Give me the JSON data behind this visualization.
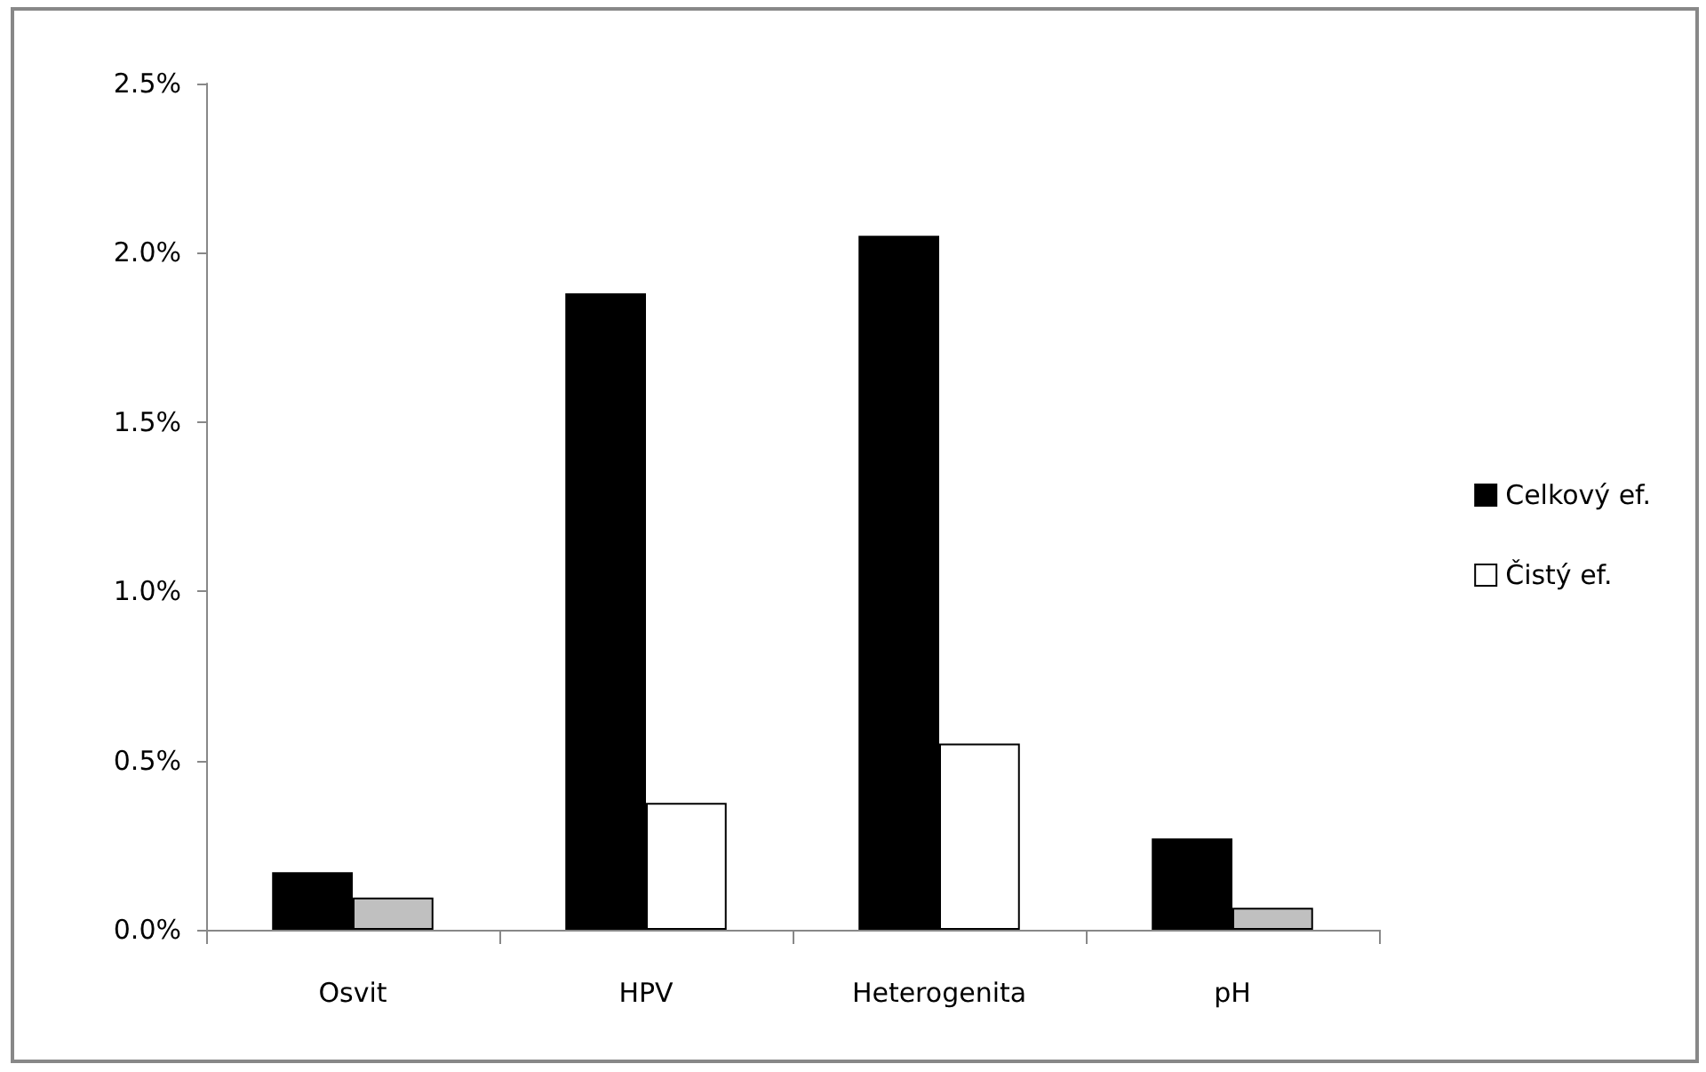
{
  "chart_data": {
    "type": "bar",
    "categories": [
      "Osvit",
      "HPV",
      "Heterogenita",
      "pH"
    ],
    "series": [
      {
        "name": "Celkový ef.",
        "color": "#000000",
        "values": [
          0.17,
          1.88,
          2.05,
          0.27
        ]
      },
      {
        "name": "Čistý ef.",
        "color": "#ffffff",
        "colors": [
          "#c0c0c0",
          "#ffffff",
          "#ffffff",
          "#c0c0c0"
        ],
        "values": [
          0.095,
          0.375,
          0.55,
          0.065
        ]
      }
    ],
    "ylim": [
      0,
      2.5
    ],
    "yticks": [
      {
        "value": 0,
        "label": "0.0%"
      },
      {
        "value": 0.5,
        "label": "0.5%"
      },
      {
        "value": 1,
        "label": "1.0%"
      },
      {
        "value": 1.5,
        "label": "1.5%"
      },
      {
        "value": 2,
        "label": "2.0%"
      },
      {
        "value": 2.5,
        "label": "2.5%"
      }
    ],
    "grid": false,
    "legend": "right"
  }
}
